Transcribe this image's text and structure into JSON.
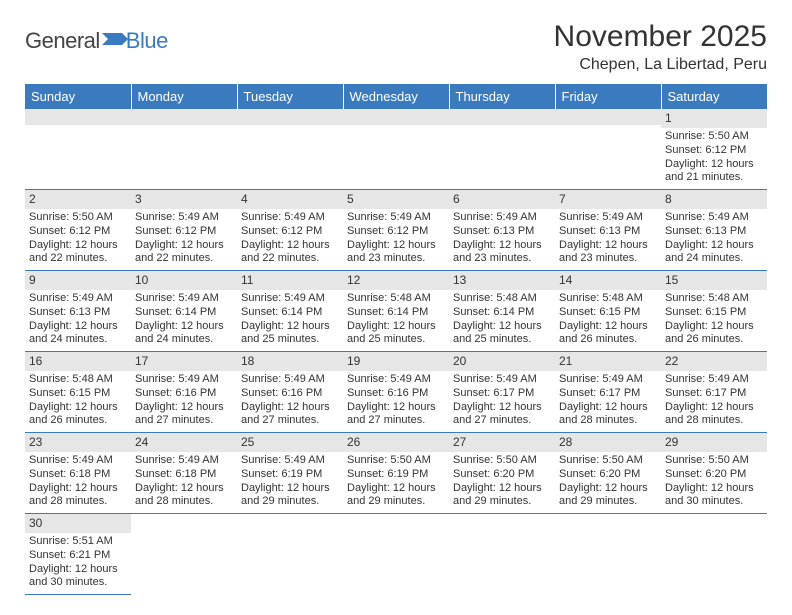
{
  "logo": {
    "general": "General",
    "blue": "Blue"
  },
  "title": "November 2025",
  "location": "Chepen, La Libertad, Peru",
  "colors": {
    "header_bg": "#3a7bbf",
    "header_text": "#ffffff",
    "daynum_bg": "#e6e6e6",
    "border": "#3a7bbf",
    "text": "#333333"
  },
  "dayHeaders": [
    "Sunday",
    "Monday",
    "Tuesday",
    "Wednesday",
    "Thursday",
    "Friday",
    "Saturday"
  ],
  "weeks": [
    [
      null,
      null,
      null,
      null,
      null,
      null,
      {
        "n": "1",
        "sr": "5:50 AM",
        "ss": "6:12 PM",
        "dl": "12 hours and 21 minutes."
      }
    ],
    [
      {
        "n": "2",
        "sr": "5:50 AM",
        "ss": "6:12 PM",
        "dl": "12 hours and 22 minutes."
      },
      {
        "n": "3",
        "sr": "5:49 AM",
        "ss": "6:12 PM",
        "dl": "12 hours and 22 minutes."
      },
      {
        "n": "4",
        "sr": "5:49 AM",
        "ss": "6:12 PM",
        "dl": "12 hours and 22 minutes."
      },
      {
        "n": "5",
        "sr": "5:49 AM",
        "ss": "6:12 PM",
        "dl": "12 hours and 23 minutes."
      },
      {
        "n": "6",
        "sr": "5:49 AM",
        "ss": "6:13 PM",
        "dl": "12 hours and 23 minutes."
      },
      {
        "n": "7",
        "sr": "5:49 AM",
        "ss": "6:13 PM",
        "dl": "12 hours and 23 minutes."
      },
      {
        "n": "8",
        "sr": "5:49 AM",
        "ss": "6:13 PM",
        "dl": "12 hours and 24 minutes."
      }
    ],
    [
      {
        "n": "9",
        "sr": "5:49 AM",
        "ss": "6:13 PM",
        "dl": "12 hours and 24 minutes."
      },
      {
        "n": "10",
        "sr": "5:49 AM",
        "ss": "6:14 PM",
        "dl": "12 hours and 24 minutes."
      },
      {
        "n": "11",
        "sr": "5:49 AM",
        "ss": "6:14 PM",
        "dl": "12 hours and 25 minutes."
      },
      {
        "n": "12",
        "sr": "5:48 AM",
        "ss": "6:14 PM",
        "dl": "12 hours and 25 minutes."
      },
      {
        "n": "13",
        "sr": "5:48 AM",
        "ss": "6:14 PM",
        "dl": "12 hours and 25 minutes."
      },
      {
        "n": "14",
        "sr": "5:48 AM",
        "ss": "6:15 PM",
        "dl": "12 hours and 26 minutes."
      },
      {
        "n": "15",
        "sr": "5:48 AM",
        "ss": "6:15 PM",
        "dl": "12 hours and 26 minutes."
      }
    ],
    [
      {
        "n": "16",
        "sr": "5:48 AM",
        "ss": "6:15 PM",
        "dl": "12 hours and 26 minutes."
      },
      {
        "n": "17",
        "sr": "5:49 AM",
        "ss": "6:16 PM",
        "dl": "12 hours and 27 minutes."
      },
      {
        "n": "18",
        "sr": "5:49 AM",
        "ss": "6:16 PM",
        "dl": "12 hours and 27 minutes."
      },
      {
        "n": "19",
        "sr": "5:49 AM",
        "ss": "6:16 PM",
        "dl": "12 hours and 27 minutes."
      },
      {
        "n": "20",
        "sr": "5:49 AM",
        "ss": "6:17 PM",
        "dl": "12 hours and 27 minutes."
      },
      {
        "n": "21",
        "sr": "5:49 AM",
        "ss": "6:17 PM",
        "dl": "12 hours and 28 minutes."
      },
      {
        "n": "22",
        "sr": "5:49 AM",
        "ss": "6:17 PM",
        "dl": "12 hours and 28 minutes."
      }
    ],
    [
      {
        "n": "23",
        "sr": "5:49 AM",
        "ss": "6:18 PM",
        "dl": "12 hours and 28 minutes."
      },
      {
        "n": "24",
        "sr": "5:49 AM",
        "ss": "6:18 PM",
        "dl": "12 hours and 28 minutes."
      },
      {
        "n": "25",
        "sr": "5:49 AM",
        "ss": "6:19 PM",
        "dl": "12 hours and 29 minutes."
      },
      {
        "n": "26",
        "sr": "5:50 AM",
        "ss": "6:19 PM",
        "dl": "12 hours and 29 minutes."
      },
      {
        "n": "27",
        "sr": "5:50 AM",
        "ss": "6:20 PM",
        "dl": "12 hours and 29 minutes."
      },
      {
        "n": "28",
        "sr": "5:50 AM",
        "ss": "6:20 PM",
        "dl": "12 hours and 29 minutes."
      },
      {
        "n": "29",
        "sr": "5:50 AM",
        "ss": "6:20 PM",
        "dl": "12 hours and 30 minutes."
      }
    ],
    [
      {
        "n": "30",
        "sr": "5:51 AM",
        "ss": "6:21 PM",
        "dl": "12 hours and 30 minutes."
      },
      null,
      null,
      null,
      null,
      null,
      null
    ]
  ],
  "labels": {
    "sunrise": "Sunrise: ",
    "sunset": "Sunset: ",
    "daylight": "Daylight: "
  }
}
